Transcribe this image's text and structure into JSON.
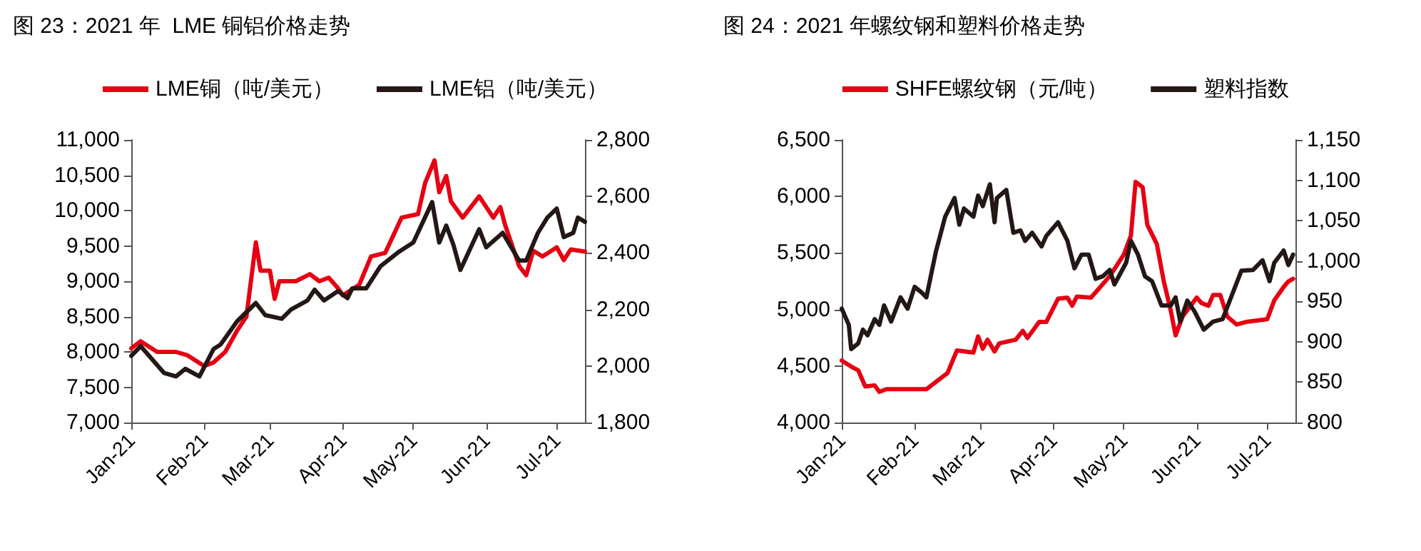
{
  "chart_data": [
    {
      "type": "line",
      "title": "图 23：2021 年  LME 铜铝价格走势",
      "legend": "top",
      "grid": false,
      "xlim": [
        "2021-01-01",
        "2021-07-13"
      ],
      "xticks": [
        {
          "value": "2021-01-01",
          "label": "Jan-21"
        },
        {
          "value": "2021-02-01",
          "label": "Feb-21"
        },
        {
          "value": "2021-03-01",
          "label": "Mar-21"
        },
        {
          "value": "2021-04-01",
          "label": "Apr-21"
        },
        {
          "value": "2021-05-01",
          "label": "May-21"
        },
        {
          "value": "2021-06-01",
          "label": "Jun-21"
        },
        {
          "value": "2021-07-01",
          "label": "Jul-21"
        }
      ],
      "ylim": [
        7000,
        11000
      ],
      "yticks": [
        {
          "value": 7000,
          "label": "7,000"
        },
        {
          "value": 7500,
          "label": "7,500"
        },
        {
          "value": 8000,
          "label": "8,000"
        },
        {
          "value": 8500,
          "label": "8,500"
        },
        {
          "value": 9000,
          "label": "9,000"
        },
        {
          "value": 9500,
          "label": "9,500"
        },
        {
          "value": 10000,
          "label": "10,000"
        },
        {
          "value": 10500,
          "label": "10,500"
        },
        {
          "value": 11000,
          "label": "11,000"
        }
      ],
      "y2lim": [
        1800,
        2800
      ],
      "y2ticks": [
        {
          "value": 1800,
          "label": "1,800"
        },
        {
          "value": 2000,
          "label": "2,000"
        },
        {
          "value": 2200,
          "label": "2,200"
        },
        {
          "value": 2400,
          "label": "2,400"
        },
        {
          "value": 2600,
          "label": "2,600"
        },
        {
          "value": 2800,
          "label": "2,800"
        }
      ],
      "series": [
        {
          "name": "LME铜（吨/美元）",
          "color": "#e60012",
          "x": [
            "2021-01-01",
            "2021-01-05",
            "2021-01-12",
            "2021-01-20",
            "2021-01-25",
            "2021-02-01",
            "2021-02-05",
            "2021-02-10",
            "2021-02-15",
            "2021-02-19",
            "2021-02-23",
            "2021-02-25",
            "2021-03-01",
            "2021-03-03",
            "2021-03-05",
            "2021-03-12",
            "2021-03-18",
            "2021-03-22",
            "2021-03-26",
            "2021-03-30",
            "2021-04-01",
            "2021-04-08",
            "2021-04-13",
            "2021-04-19",
            "2021-04-26",
            "2021-05-03",
            "2021-05-06",
            "2021-05-10",
            "2021-05-12",
            "2021-05-15",
            "2021-05-17",
            "2021-05-22",
            "2021-05-29",
            "2021-06-04",
            "2021-06-07",
            "2021-06-09",
            "2021-06-15",
            "2021-06-18",
            "2021-06-21",
            "2021-06-25",
            "2021-07-01",
            "2021-07-04",
            "2021-07-07",
            "2021-07-13"
          ],
          "values": [
            8050,
            8150,
            8000,
            8000,
            7950,
            7800,
            7850,
            8000,
            8300,
            8500,
            9550,
            9150,
            9150,
            8750,
            9000,
            9000,
            9100,
            9000,
            9050,
            8900,
            8800,
            8950,
            9350,
            9400,
            9900,
            9950,
            10390,
            10710,
            10260,
            10490,
            10130,
            9900,
            10200,
            9900,
            10050,
            9800,
            9215,
            9085,
            9430,
            9350,
            9480,
            9300,
            9450,
            9420
          ]
        },
        {
          "name": "LME铝（吨/美元）",
          "color": "#231815",
          "axis": "y2",
          "x": [
            "2021-01-01",
            "2021-01-05",
            "2021-01-15",
            "2021-01-20",
            "2021-01-24",
            "2021-01-30",
            "2021-02-05",
            "2021-02-08",
            "2021-02-15",
            "2021-02-23",
            "2021-02-27",
            "2021-03-06",
            "2021-03-10",
            "2021-03-17",
            "2021-03-20",
            "2021-03-24",
            "2021-03-30",
            "2021-04-03",
            "2021-04-05",
            "2021-04-11",
            "2021-04-17",
            "2021-04-25",
            "2021-05-01",
            "2021-05-09",
            "2021-05-12",
            "2021-05-15",
            "2021-05-18",
            "2021-05-21",
            "2021-05-29",
            "2021-06-01",
            "2021-06-08",
            "2021-06-15",
            "2021-06-18",
            "2021-06-23",
            "2021-06-27",
            "2021-07-01",
            "2021-07-04",
            "2021-07-08",
            "2021-07-10",
            "2021-07-13"
          ],
          "values": [
            2036,
            2070,
            1975,
            1963,
            1990,
            1963,
            2060,
            2076,
            2158,
            2223,
            2180,
            2167,
            2200,
            2232,
            2270,
            2232,
            2265,
            2240,
            2275,
            2275,
            2353,
            2405,
            2437,
            2580,
            2437,
            2497,
            2430,
            2340,
            2484,
            2420,
            2471,
            2373,
            2373,
            2471,
            2525,
            2557,
            2456,
            2471,
            2525,
            2510
          ]
        }
      ]
    },
    {
      "type": "line",
      "title": "图 24：2021 年螺纹钢和塑料价格走势",
      "legend": "top",
      "grid": false,
      "xlim": [
        "2021-01-01",
        "2021-07-13"
      ],
      "xticks": [
        {
          "value": "2021-01-01",
          "label": "Jan-21"
        },
        {
          "value": "2021-02-01",
          "label": "Feb-21"
        },
        {
          "value": "2021-03-01",
          "label": "Mar-21"
        },
        {
          "value": "2021-04-01",
          "label": "Apr-21"
        },
        {
          "value": "2021-05-01",
          "label": "May-21"
        },
        {
          "value": "2021-06-01",
          "label": "Jun-21"
        },
        {
          "value": "2021-07-01",
          "label": "Jul-21"
        }
      ],
      "ylim": [
        4000,
        6500
      ],
      "yticks": [
        {
          "value": 4000,
          "label": "4,000"
        },
        {
          "value": 4500,
          "label": "4,500"
        },
        {
          "value": 5000,
          "label": "5,000"
        },
        {
          "value": 5500,
          "label": "5,500"
        },
        {
          "value": 6000,
          "label": "6,000"
        },
        {
          "value": 6500,
          "label": "6,500"
        }
      ],
      "y2lim": [
        800,
        1150
      ],
      "y2ticks": [
        800,
        850,
        900,
        950,
        {
          "value": 1000,
          "label": "1,000"
        },
        {
          "value": 1050,
          "label": "1,050"
        },
        {
          "value": 1100,
          "label": "1,100"
        },
        {
          "value": 1150,
          "label": "1,150"
        }
      ],
      "series": [
        {
          "name": "SHFE螺纹钢（元/吨）",
          "color": "#e60012",
          "x": [
            "2021-01-01",
            "2021-01-05",
            "2021-01-08",
            "2021-01-11",
            "2021-01-15",
            "2021-01-17",
            "2021-01-20",
            "2021-01-28",
            "2021-02-06",
            "2021-02-15",
            "2021-02-19",
            "2021-02-26",
            "2021-02-28",
            "2021-03-02",
            "2021-03-04",
            "2021-03-07",
            "2021-03-09",
            "2021-03-16",
            "2021-03-19",
            "2021-03-21",
            "2021-03-26",
            "2021-03-29",
            "2021-04-03",
            "2021-04-07",
            "2021-04-09",
            "2021-04-11",
            "2021-04-17",
            "2021-04-21",
            "2021-04-25",
            "2021-04-28",
            "2021-05-01",
            "2021-05-04",
            "2021-05-06",
            "2021-05-09",
            "2021-05-11",
            "2021-05-15",
            "2021-05-18",
            "2021-05-21",
            "2021-05-23",
            "2021-05-26",
            "2021-06-01",
            "2021-06-03",
            "2021-06-06",
            "2021-06-08",
            "2021-06-11",
            "2021-06-14",
            "2021-06-18",
            "2021-06-22",
            "2021-07-01",
            "2021-07-04",
            "2021-07-08",
            "2021-07-10",
            "2021-07-12"
          ],
          "values": [
            4548,
            4495,
            4462,
            4319,
            4329,
            4271,
            4295,
            4295,
            4295,
            4438,
            4638,
            4619,
            4762,
            4652,
            4733,
            4629,
            4700,
            4733,
            4810,
            4748,
            4890,
            4890,
            5095,
            5105,
            5033,
            5114,
            5105,
            5200,
            5295,
            5390,
            5486,
            5652,
            6129,
            6081,
            5748,
            5581,
            5248,
            4986,
            4771,
            4938,
            5105,
            5057,
            5033,
            5129,
            5129,
            4938,
            4867,
            4890,
            4914,
            5081,
            5200,
            5248,
            5271
          ]
        },
        {
          "name": "塑料指数",
          "color": "#231815",
          "axis": "y2",
          "x": [
            "2021-01-01",
            "2021-01-04",
            "2021-01-05",
            "2021-01-08",
            "2021-01-10",
            "2021-01-12",
            "2021-01-15",
            "2021-01-17",
            "2021-01-19",
            "2021-01-22",
            "2021-01-26",
            "2021-01-29",
            "2021-02-01",
            "2021-02-04",
            "2021-02-06",
            "2021-02-10",
            "2021-02-14",
            "2021-02-18",
            "2021-02-20",
            "2021-02-22",
            "2021-02-26",
            "2021-02-28",
            "2021-03-02",
            "2021-03-05",
            "2021-03-07",
            "2021-03-08",
            "2021-03-12",
            "2021-03-15",
            "2021-03-18",
            "2021-03-20",
            "2021-03-23",
            "2021-03-27",
            "2021-03-29",
            "2021-04-03",
            "2021-04-07",
            "2021-04-10",
            "2021-04-13",
            "2021-04-16",
            "2021-04-19",
            "2021-04-22",
            "2021-04-25",
            "2021-04-27",
            "2021-05-02",
            "2021-05-04",
            "2021-05-07",
            "2021-05-10",
            "2021-05-13",
            "2021-05-17",
            "2021-05-21",
            "2021-05-23",
            "2021-05-25",
            "2021-05-28",
            "2021-05-31",
            "2021-06-04",
            "2021-06-08",
            "2021-06-12",
            "2021-06-16",
            "2021-06-20",
            "2021-06-25",
            "2021-06-29",
            "2021-07-02",
            "2021-07-04",
            "2021-07-08",
            "2021-07-10",
            "2021-07-12"
          ],
          "values": [
            941,
            921,
            891,
            898,
            915,
            908,
            928,
            921,
            945,
            925,
            955,
            941,
            968,
            961,
            955,
            1011,
            1055,
            1078,
            1045,
            1065,
            1055,
            1081,
            1068,
            1095,
            1048,
            1078,
            1088,
            1035,
            1038,
            1025,
            1035,
            1018,
            1031,
            1048,
            1025,
            991,
            1008,
            1008,
            978,
            981,
            989,
            971,
            998,
            1025,
            1008,
            981,
            975,
            945,
            945,
            955,
            925,
            951,
            938,
            915,
            925,
            928,
            958,
            988,
            989,
            1001,
            975,
            998,
            1013,
            995,
            1008
          ]
        }
      ]
    }
  ]
}
